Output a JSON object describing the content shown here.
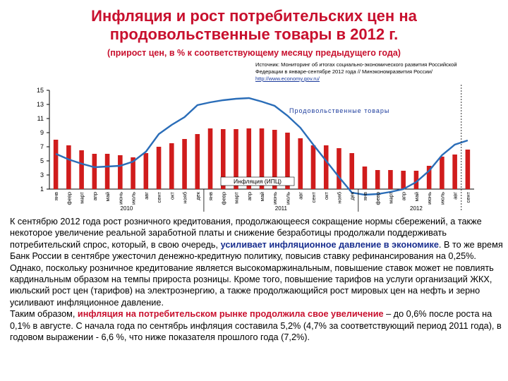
{
  "title": "Инфляция и рост потребительских цен на продовольственные товары в 2012 г.",
  "subtitle": "(прирост цен, в % к соответствующему месяцу предыдущего года)",
  "source": {
    "line1": "Источник: Мониторинг об итогах социально-экономического развития Российской",
    "line2": "Федерации в январе-сентябре 2012 года // Минэкономразвития России/",
    "url": "http://www.economy.gov.ru/"
  },
  "chart_data": {
    "type": "bar",
    "categories": [
      "янв",
      "февр",
      "март",
      "апр",
      "май",
      "июнь",
      "июль",
      "авг",
      "сент",
      "окт",
      "нояб",
      "дек",
      "янв",
      "февр",
      "март",
      "апр",
      "май",
      "июнь",
      "июль",
      "авг",
      "сент",
      "окт",
      "нояб",
      "дек",
      "янв",
      "февр",
      "март",
      "апр",
      "май",
      "июнь",
      "июль",
      "авг",
      "сент"
    ],
    "year_labels": [
      "2010",
      "2011",
      "2012"
    ],
    "ylim": [
      1,
      15
    ],
    "yticks": [
      "15",
      "13",
      "11",
      "9",
      "7",
      "5",
      "3",
      "1"
    ],
    "series": [
      {
        "name": "Продовольственные товары",
        "type": "line",
        "color": "#2a6db8",
        "values": [
          6.0,
          5.2,
          4.6,
          4.1,
          4.2,
          4.3,
          4.9,
          6.3,
          8.8,
          10.1,
          11.2,
          12.9,
          13.3,
          13.6,
          13.8,
          13.9,
          13.4,
          12.8,
          11.4,
          9.7,
          7.3,
          5.0,
          2.7,
          0.5,
          0.2,
          0.3,
          0.6,
          1.0,
          2.0,
          3.6,
          5.8,
          7.3,
          7.9
        ]
      },
      {
        "name": "Инфляция (ИПЦ)",
        "type": "bar",
        "color": "#d01c1c",
        "values": [
          8.0,
          7.2,
          6.5,
          6.0,
          6.0,
          5.8,
          5.5,
          6.1,
          7.0,
          7.5,
          8.1,
          8.8,
          9.6,
          9.5,
          9.5,
          9.6,
          9.6,
          9.4,
          9.0,
          8.2,
          7.2,
          7.2,
          6.8,
          6.1,
          4.2,
          3.7,
          3.7,
          3.6,
          3.6,
          4.3,
          5.6,
          5.9,
          6.6
        ]
      }
    ],
    "annotations": [
      {
        "text": "Продовольственные товары"
      },
      {
        "text": "Инфляция (ИПЦ)"
      }
    ]
  },
  "paragraphs": [
    [
      {
        "t": "К сентябрю 2012 года рост розничного кредитования, продолжающееся сокращение нормы сбережений, а также некоторое увеличение реальной заработной платы и снижение безработицы продолжали поддерживать потребительский спрос, который, в свою очередь, ",
        "s": ""
      },
      {
        "t": "усиливает инфляционное давление в экономике",
        "s": "blue"
      },
      {
        "t": ". В то же время Банк России в сентябре ужесточил денежно-кредитную политику, повысив ставку рефинансирования на 0,25%. Однако, поскольку розничное кредитование является высокомаржинальным, повышение ставок может не повлиять кардинальным образом на темпы прироста розницы. Кроме того, повышение тарифов на услуги организаций ЖКХ, июльский рост цен (тарифов) на электроэнергию, а также продолжающийся рост мировых цен на нефть и зерно усиливают инфляционное давление.",
        "s": ""
      }
    ],
    [
      {
        "t": "Таким образом, ",
        "s": ""
      },
      {
        "t": "инфляция на потребительском рынке продолжила свое увеличение",
        "s": "red"
      },
      {
        "t": " – до 0,6% после роста на 0,1% в августе. С начала года по сентябрь инфляция составила 5,2% (4,7% за соответствующий период 2011 года), в годовом выражении - 6,6 %, что ниже показателя прошлого года (7,2%).",
        "s": ""
      }
    ]
  ]
}
